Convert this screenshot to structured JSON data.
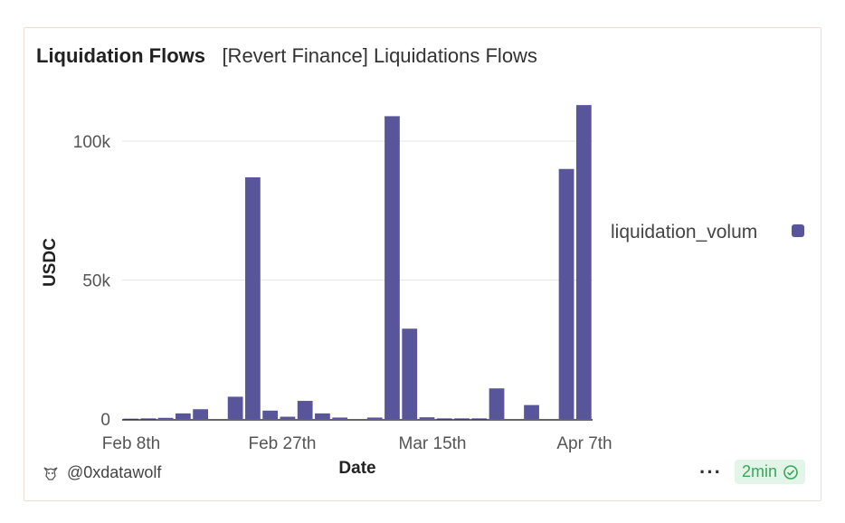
{
  "card": {
    "title": "Liquidation Flows",
    "subtitle": "[Revert Finance] Liquidations Flows"
  },
  "footer": {
    "author": "@0xdatawolf",
    "author_icon": "wolf-avatar-icon",
    "more_icon": "more-icon",
    "refresh_badge": "2min",
    "refresh_icon": "check-circle-icon"
  },
  "colors": {
    "bar": "#58559a",
    "grid": "#e6e6e6",
    "badge_bg": "#e3f5e8",
    "badge_text": "#3aa65a"
  },
  "chart_data": {
    "type": "bar",
    "xlabel": "Date",
    "ylabel": "USDC",
    "ylim": [
      0,
      115000
    ],
    "yticks": [
      0,
      50000,
      100000
    ],
    "ytick_labels": [
      "0",
      "50k",
      "100k"
    ],
    "xtick_labels": [
      "Feb 8th",
      "Feb 27th",
      "Mar 15th",
      "Apr 7th"
    ],
    "legend_position": "right",
    "series": [
      {
        "name": "liquidation_volume",
        "legend_label": "liquidation_volum",
        "values": [
          100,
          200,
          400,
          2000,
          3500,
          0,
          8000,
          87000,
          3000,
          800,
          6500,
          2000,
          500,
          0,
          500,
          109000,
          32500,
          600,
          200,
          200,
          200,
          11000,
          0,
          5000,
          0,
          90000,
          113000
        ]
      }
    ]
  }
}
